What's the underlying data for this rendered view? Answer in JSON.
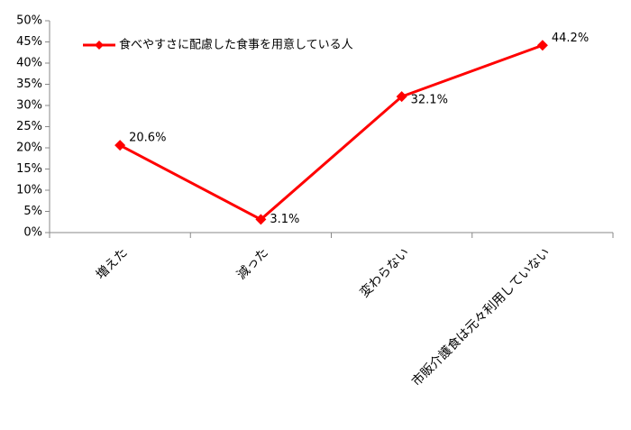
{
  "chart_data": {
    "type": "line",
    "categories": [
      "増えた",
      "減った",
      "変わらない",
      "市販介護食は元々利用していない"
    ],
    "series": [
      {
        "name": "食べやすさに配慮した食事を用意している人",
        "color": "#ff0000",
        "values": [
          20.6,
          3.1,
          32.1,
          44.2
        ],
        "value_labels": [
          "20.6%",
          "3.1%",
          "32.1%",
          "44.2%"
        ]
      }
    ],
    "ylim": [
      0,
      50
    ],
    "yticks": [
      {
        "value": 0,
        "label": "0%"
      },
      {
        "value": 5,
        "label": "5%"
      },
      {
        "value": 10,
        "label": "10%"
      },
      {
        "value": 15,
        "label": "15%"
      },
      {
        "value": 20,
        "label": "20%"
      },
      {
        "value": 25,
        "label": "25%"
      },
      {
        "value": 30,
        "label": "30%"
      },
      {
        "value": 35,
        "label": "35%"
      },
      {
        "value": 40,
        "label": "40%"
      },
      {
        "value": 45,
        "label": "45%"
      },
      {
        "value": 50,
        "label": "50%"
      }
    ],
    "legend": "top-left"
  }
}
